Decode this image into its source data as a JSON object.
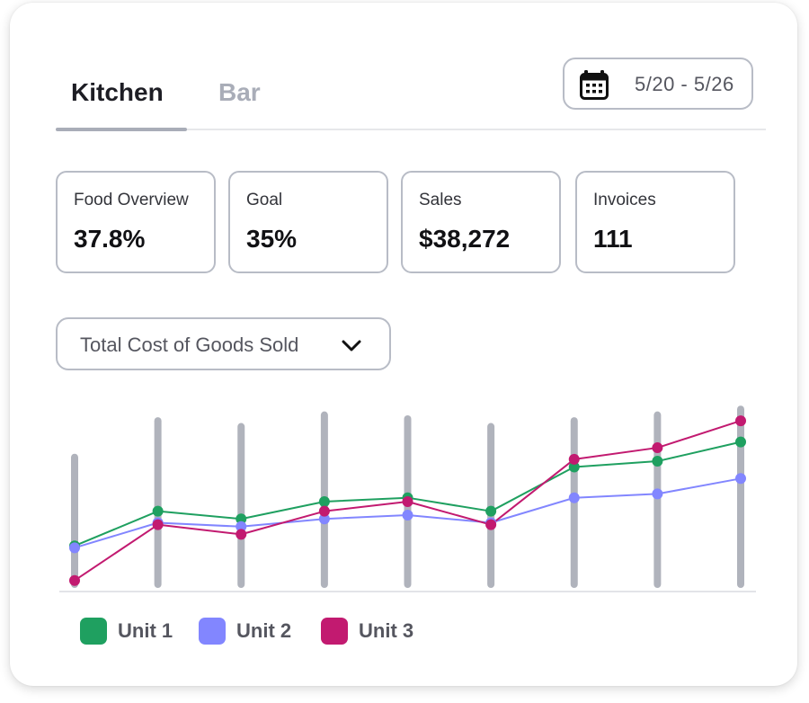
{
  "tabs": [
    {
      "label": "Kitchen",
      "active": true
    },
    {
      "label": "Bar",
      "active": false
    }
  ],
  "date_range": {
    "label": "5/20 - 5/26",
    "icon": "calendar-icon"
  },
  "stats": [
    {
      "label": "Food Overview",
      "value": "37.8%"
    },
    {
      "label": "Goal",
      "value": "35%"
    },
    {
      "label": "Sales",
      "value": "$38,272"
    },
    {
      "label": "Invoices",
      "value": "111"
    }
  ],
  "metric_select": {
    "selected": "Total Cost of Goods Sold",
    "icon": "chevron-down-icon"
  },
  "chart_data": {
    "type": "line",
    "x": [
      1,
      2,
      3,
      4,
      5,
      6,
      7,
      8,
      9
    ],
    "ylim": [
      0,
      100
    ],
    "bars": [
      66,
      85,
      82,
      88,
      86,
      82,
      85,
      88,
      91
    ],
    "series": [
      {
        "name": "Unit 1",
        "color": "#1fa060",
        "values": [
          20,
          38,
          34,
          43,
          45,
          38,
          61,
          64,
          74
        ]
      },
      {
        "name": "Unit 2",
        "color": "#8286ff",
        "values": [
          19,
          32,
          30,
          34,
          36,
          32,
          45,
          47,
          55
        ]
      },
      {
        "name": "Unit 3",
        "color": "#c21a70",
        "values": [
          2,
          31,
          26,
          38,
          43,
          31,
          65,
          71,
          85
        ]
      }
    ],
    "grid": false,
    "legend": "bottom-left"
  },
  "colors": {
    "bar": "#b0b3bc",
    "baseline": "#e3e4e8",
    "text_dark": "#1d1d24",
    "border": "#b8bcc6"
  }
}
